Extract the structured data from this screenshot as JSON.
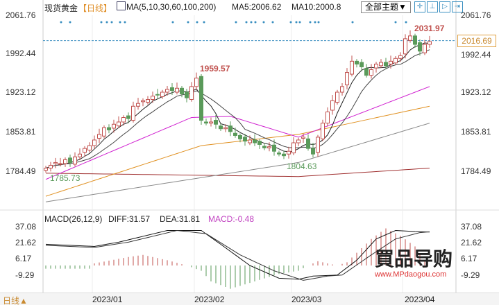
{
  "header": {
    "title": "现货黄金",
    "period": "【日线】",
    "ma_label": "MA(5,10,30,60,100,200)",
    "ma5": "MA5:2006.62",
    "ma10": "MA10:2000.8",
    "theme": "全部主题▼"
  },
  "toolbar": {
    "icons": [
      "crosshair-icon",
      "zoom-range-icon",
      "play-icon",
      "exit-icon"
    ]
  },
  "price_axis": {
    "labels": [
      "2061.76",
      "1992.44",
      "1923.12",
      "1853.81",
      "1784.49"
    ],
    "current": "2016.69"
  },
  "annotations": {
    "high1": "1959.57",
    "high2": "2031.97",
    "low1": "1785.73",
    "low2": "1804.63"
  },
  "macd": {
    "title": "MACD(26,12,9)",
    "diff": "DIFF:31.57",
    "dea": "DEA:31.81",
    "macd": "MACD:-0.48",
    "axis": [
      "37.08",
      "21.62",
      "6.17",
      "-9.29"
    ]
  },
  "xaxis": [
    "2023/01",
    "2023/02",
    "2023/03",
    "2023/04"
  ],
  "footer": {
    "period_button": "日线▲"
  },
  "watermark": {
    "brand": "買品导购",
    "url": "www.MPdaogou.com"
  },
  "colors": {
    "up": "#c0504d",
    "down": "#5a9a5a",
    "ma30": "#d020d0",
    "ma60": "#e09020",
    "ma100": "#888888",
    "ma200": "#a03030",
    "macd": "#c040c0"
  },
  "chart_data": {
    "type": "candlestick",
    "closes": [
      1790,
      1795,
      1800,
      1798,
      1805,
      1800,
      1810,
      1815,
      1825,
      1830,
      1840,
      1850,
      1862,
      1858,
      1868,
      1872,
      1880,
      1878,
      1900,
      1905,
      1910,
      1912,
      1918,
      1920,
      1925,
      1930,
      1928,
      1932,
      1922,
      1915,
      1935,
      1950,
      1875,
      1870,
      1872,
      1868,
      1860,
      1862,
      1855,
      1848,
      1842,
      1838,
      1840,
      1835,
      1832,
      1826,
      1828,
      1820,
      1815,
      1812,
      1820,
      1835,
      1840,
      1845,
      1825,
      1815,
      1845,
      1870,
      1890,
      1910,
      1925,
      1935,
      1960,
      1980,
      1975,
      1970,
      1955,
      1965,
      1975,
      1978,
      1972,
      1980,
      1985,
      1990,
      2020,
      2025,
      2010,
      1998,
      2010,
      2015
    ],
    "ylim": [
      1719,
      2061.76
    ],
    "ma30": [
      [
        0,
        1770
      ],
      [
        30,
        1880
      ],
      [
        38,
        1882
      ],
      [
        52,
        1845
      ],
      [
        79,
        1935
      ]
    ],
    "ma60": [
      [
        0,
        1740
      ],
      [
        32,
        1830
      ],
      [
        52,
        1850
      ],
      [
        79,
        1900
      ]
    ],
    "ma100": [
      [
        0,
        1730
      ],
      [
        52,
        1800
      ],
      [
        79,
        1870
      ]
    ],
    "ma200": [
      [
        0,
        1781
      ],
      [
        52,
        1775
      ],
      [
        79,
        1790
      ]
    ],
    "macd_hist": [
      [
        0,
        -3
      ],
      [
        9,
        -3
      ],
      [
        10,
        2
      ],
      [
        17,
        8
      ],
      [
        20,
        10
      ],
      [
        25,
        5
      ],
      [
        29,
        0
      ],
      [
        32,
        -5
      ],
      [
        34,
        -15
      ],
      [
        38,
        -22
      ],
      [
        43,
        -15
      ],
      [
        48,
        -8
      ],
      [
        52,
        -5
      ],
      [
        54,
        0
      ],
      [
        56,
        4
      ],
      [
        60,
        0
      ],
      [
        62,
        3
      ],
      [
        64,
        12
      ],
      [
        67,
        25
      ],
      [
        70,
        35
      ],
      [
        73,
        28
      ],
      [
        76,
        18
      ],
      [
        78,
        5
      ],
      [
        79,
        0
      ]
    ],
    "diff": [
      [
        0,
        20
      ],
      [
        10,
        18
      ],
      [
        15,
        22
      ],
      [
        25,
        33
      ],
      [
        32,
        33
      ],
      [
        36,
        20
      ],
      [
        42,
        0
      ],
      [
        48,
        -12
      ],
      [
        52,
        -13
      ],
      [
        55,
        -10
      ],
      [
        60,
        -9
      ],
      [
        64,
        5
      ],
      [
        68,
        25
      ],
      [
        72,
        33
      ],
      [
        76,
        32
      ],
      [
        79,
        31.57
      ]
    ],
    "dea": [
      [
        0,
        19
      ],
      [
        10,
        17
      ],
      [
        17,
        22
      ],
      [
        27,
        33
      ],
      [
        33,
        30
      ],
      [
        40,
        10
      ],
      [
        47,
        -5
      ],
      [
        53,
        -14
      ],
      [
        58,
        -10
      ],
      [
        61,
        -9
      ],
      [
        67,
        10
      ],
      [
        72,
        25
      ],
      [
        77,
        31
      ],
      [
        79,
        31.81
      ]
    ],
    "macd_ylim": [
      -9.29,
      37.08
    ]
  }
}
